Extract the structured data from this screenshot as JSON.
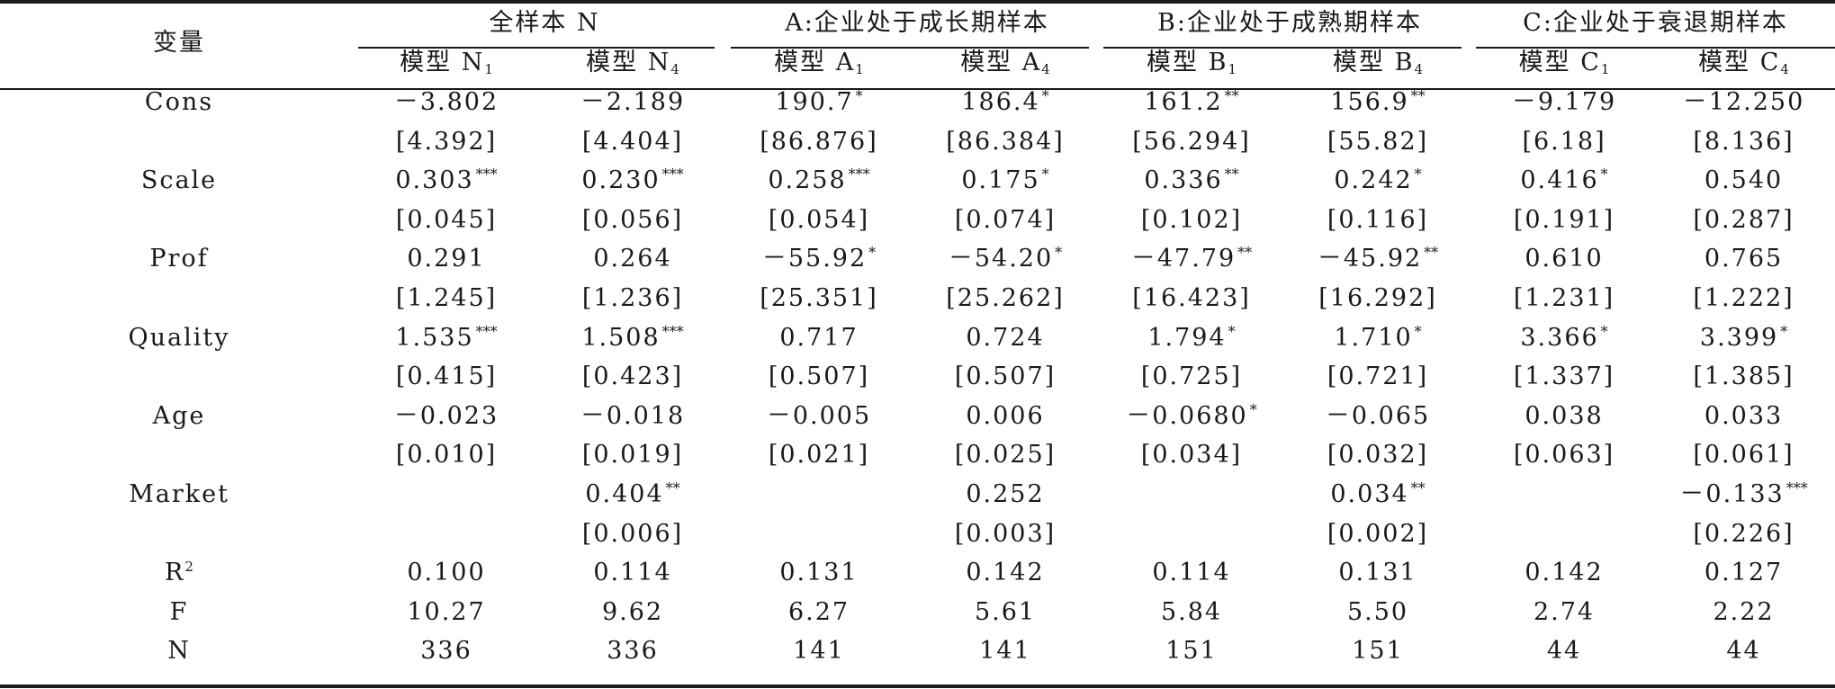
{
  "header": {
    "var_label": "变量",
    "groups": [
      "全样本 N",
      "A:企业处于成长期样本",
      "B:企业处于成熟期样本",
      "C:企业处于衰退期样本"
    ],
    "models": [
      {
        "base": "模型 N",
        "sub": "1"
      },
      {
        "base": "模型 N",
        "sub": "4"
      },
      {
        "base": "模型 A",
        "sub": "1"
      },
      {
        "base": "模型 A",
        "sub": "4"
      },
      {
        "base": "模型 B",
        "sub": "1"
      },
      {
        "base": "模型 B",
        "sub": "4"
      },
      {
        "base": "模型 C",
        "sub": "1"
      },
      {
        "base": "模型 C",
        "sub": "4"
      }
    ]
  },
  "rows": [
    {
      "name": "Cons",
      "coef": [
        [
          "－3.802",
          ""
        ],
        [
          "－2.189",
          ""
        ],
        [
          "190.7",
          "*"
        ],
        [
          "186.4",
          "*"
        ],
        [
          "161.2",
          "**"
        ],
        [
          "156.9",
          "**"
        ],
        [
          "－9.179",
          ""
        ],
        [
          "－12.250",
          ""
        ]
      ],
      "se": [
        "[4.392]",
        "[4.404]",
        "[86.876]",
        "[86.384]",
        "[56.294]",
        "[55.82]",
        "[6.18]",
        "[8.136]"
      ]
    },
    {
      "name": "Scale",
      "coef": [
        [
          "0.303",
          "***"
        ],
        [
          "0.230",
          "***"
        ],
        [
          "0.258",
          "***"
        ],
        [
          "0.175",
          "*"
        ],
        [
          "0.336",
          "**"
        ],
        [
          "0.242",
          "*"
        ],
        [
          "0.416",
          "*"
        ],
        [
          "0.540",
          ""
        ]
      ],
      "se": [
        "[0.045]",
        "[0.056]",
        "[0.054]",
        "[0.074]",
        "[0.102]",
        "[0.116]",
        "[0.191]",
        "[0.287]"
      ]
    },
    {
      "name": "Prof",
      "coef": [
        [
          "0.291",
          ""
        ],
        [
          "0.264",
          ""
        ],
        [
          "－55.92",
          "*"
        ],
        [
          "－54.20",
          "*"
        ],
        [
          "－47.79",
          "**"
        ],
        [
          "－45.92",
          "**"
        ],
        [
          "0.610",
          ""
        ],
        [
          "0.765",
          ""
        ]
      ],
      "se": [
        "[1.245]",
        "[1.236]",
        "[25.351]",
        "[25.262]",
        "[16.423]",
        "[16.292]",
        "[1.231]",
        "[1.222]"
      ]
    },
    {
      "name": "Quality",
      "coef": [
        [
          "1.535",
          "***"
        ],
        [
          "1.508",
          "***"
        ],
        [
          "0.717",
          ""
        ],
        [
          "0.724",
          ""
        ],
        [
          "1.794",
          "*"
        ],
        [
          "1.710",
          "*"
        ],
        [
          "3.366",
          "*"
        ],
        [
          "3.399",
          "*"
        ]
      ],
      "se": [
        "[0.415]",
        "[0.423]",
        "[0.507]",
        "[0.507]",
        "[0.725]",
        "[0.721]",
        "[1.337]",
        "[1.385]"
      ]
    },
    {
      "name": "Age",
      "coef": [
        [
          "－0.023",
          ""
        ],
        [
          "－0.018",
          ""
        ],
        [
          "－0.005",
          ""
        ],
        [
          "0.006",
          ""
        ],
        [
          "－0.0680",
          "*"
        ],
        [
          "－0.065",
          ""
        ],
        [
          "0.038",
          ""
        ],
        [
          "0.033",
          ""
        ]
      ],
      "se": [
        "[0.010]",
        "[0.019]",
        "[0.021]",
        "[0.025]",
        "[0.034]",
        "[0.032]",
        "[0.063]",
        "[0.061]"
      ]
    },
    {
      "name": "Market",
      "coef": [
        [
          "",
          ""
        ],
        [
          "0.404",
          "**"
        ],
        [
          "",
          ""
        ],
        [
          "0.252",
          ""
        ],
        [
          "",
          ""
        ],
        [
          "0.034",
          "**"
        ],
        [
          "",
          ""
        ],
        [
          "－0.133",
          "***"
        ]
      ],
      "se": [
        "",
        "[0.006]",
        "",
        "[0.003]",
        "",
        "[0.002]",
        "",
        "[0.226]"
      ]
    }
  ],
  "stats": [
    {
      "name": "R",
      "sup": "2",
      "values": [
        "0.100",
        "0.114",
        "0.131",
        "0.142",
        "0.114",
        "0.131",
        "0.142",
        "0.127"
      ]
    },
    {
      "name": "F",
      "sup": "",
      "values": [
        "10.27",
        "9.62",
        "6.27",
        "5.61",
        "5.84",
        "5.50",
        "2.74",
        "2.22"
      ]
    },
    {
      "name": "N",
      "sup": "",
      "values": [
        "336",
        "336",
        "141",
        "141",
        "151",
        "151",
        "44",
        "44"
      ]
    }
  ]
}
